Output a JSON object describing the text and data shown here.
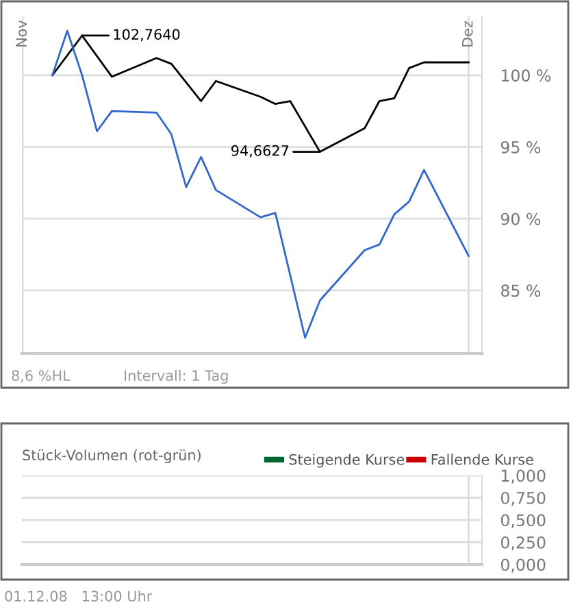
{
  "chart_data": [
    {
      "type": "line",
      "legend": false,
      "grid": true,
      "marker": "none",
      "line_style": "solid",
      "categories": [
        "Nov",
        null,
        null,
        null,
        null,
        null,
        null,
        null,
        null,
        null,
        null,
        null,
        null,
        null,
        null,
        null,
        null,
        null,
        null,
        null,
        null,
        null,
        null,
        null,
        null,
        null,
        null,
        null,
        null,
        null,
        "Dez"
      ],
      "ylim": [
        80.6,
        104.1
      ],
      "yticks": [
        {
          "value": 85,
          "label": "85 %"
        },
        {
          "value": 90,
          "label": "90 %"
        },
        {
          "value": 95,
          "label": "95 %"
        },
        {
          "value": 100,
          "label": "100 %"
        }
      ],
      "series": [
        {
          "color": "#000000",
          "values": [
            null,
            null,
            100,
            null,
            102.764,
            null,
            99.9,
            null,
            null,
            101.2,
            100.8,
            null,
            98.2,
            99.6,
            null,
            null,
            98.5,
            98.0,
            98.2,
            null,
            94.6627,
            null,
            null,
            96.3,
            98.2,
            98.4,
            100.5,
            100.9,
            null,
            null,
            100.9
          ]
        },
        {
          "color": "#3366cc",
          "values": [
            null,
            null,
            100,
            103.1,
            100,
            96.1,
            97.5,
            null,
            null,
            97.4,
            95.9,
            92.2,
            94.3,
            92.0,
            null,
            null,
            90.1,
            90.4,
            null,
            81.7,
            84.3,
            null,
            null,
            87.8,
            88.2,
            90.3,
            91.2,
            93.4,
            null,
            null,
            87.4
          ]
        }
      ],
      "annotations": [
        "102,7640",
        "94,6627",
        "8,6 %HL",
        "Intervall: 1 Tag"
      ]
    },
    {
      "type": "bar",
      "title": "Stück-Volumen (rot-grün)",
      "legend": "top right",
      "grid": true,
      "tick_labels": "y",
      "categories": [
        null,
        null,
        null,
        null,
        null,
        null,
        null,
        null,
        null,
        null,
        null,
        null,
        null,
        null,
        null,
        null,
        null,
        null,
        null,
        null,
        null,
        null,
        null,
        null,
        null,
        null,
        null,
        null,
        null,
        null,
        null
      ],
      "ylim": [
        0,
        1
      ],
      "yticks": [
        {
          "value": 0,
          "label": "0,000"
        },
        {
          "value": 0.25,
          "label": "0,250"
        },
        {
          "value": 0.5,
          "label": "0,500"
        },
        {
          "value": 0.75,
          "label": "0,750"
        },
        {
          "value": 1,
          "label": "1,000"
        }
      ],
      "series": [
        {
          "name": "Steigende Kurse",
          "color": "#006633",
          "values": [
            null,
            null,
            null,
            null,
            null,
            null,
            null,
            null,
            null,
            null,
            null,
            null,
            null,
            null,
            null,
            null,
            null,
            null,
            null,
            null,
            null,
            null,
            null,
            null,
            null,
            null,
            null,
            null,
            null,
            null,
            null
          ]
        },
        {
          "name": "Fallende Kurse",
          "color": "#cc0000",
          "values": [
            null,
            null,
            null,
            null,
            null,
            null,
            null,
            null,
            null,
            null,
            null,
            null,
            null,
            null,
            null,
            null,
            null,
            null,
            null,
            null,
            null,
            null,
            null,
            null,
            null,
            null,
            null,
            null,
            null,
            null,
            null
          ]
        }
      ],
      "annotations": [
        "01.12.08   13:00 Uhr"
      ]
    }
  ]
}
